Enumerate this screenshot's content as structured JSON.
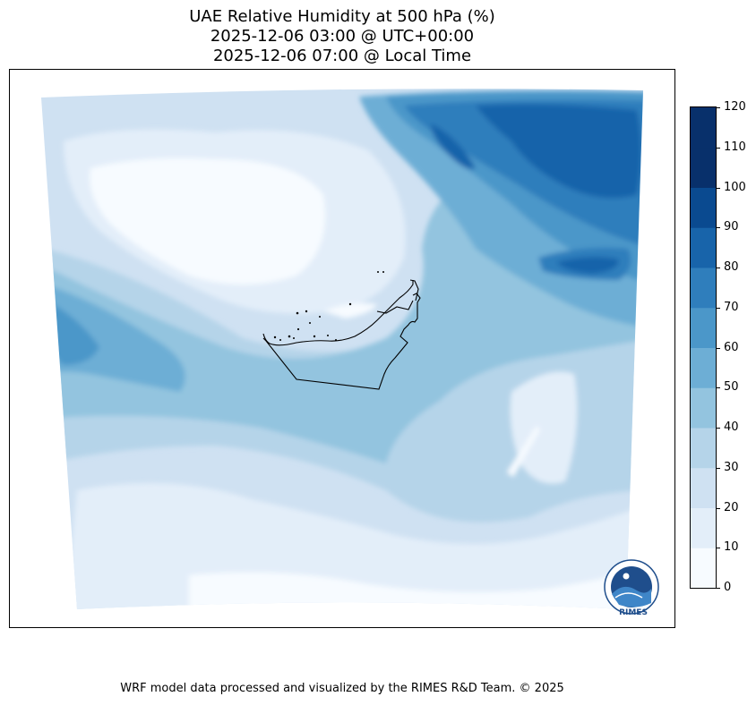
{
  "title": {
    "line1": "UAE Relative Humidity at 500 hPa (%)",
    "line2": "2025-12-06 03:00 @ UTC+00:00",
    "line3": "2025-12-06 07:00 @ Local Time"
  },
  "colorbar": {
    "ticks": [
      "0",
      "10",
      "20",
      "30",
      "40",
      "50",
      "60",
      "70",
      "80",
      "90",
      "100",
      "110",
      "120"
    ],
    "colors": [
      "#f7fbff",
      "#e3eef9",
      "#cfe1f2",
      "#b5d4e9",
      "#93c4df",
      "#6daed5",
      "#4b97c9",
      "#2f7ebc",
      "#1864aa",
      "#0a4a90",
      "#08306b",
      "#08306b"
    ]
  },
  "logo": {
    "text": "RIMES",
    "ring_text": "Regional Integrated Multi-Hazard Early Warning System"
  },
  "footer": "WRF model data processed and visualized by the RIMES R&D Team. © 2025"
}
